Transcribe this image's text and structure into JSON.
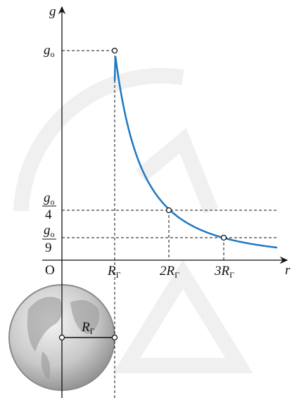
{
  "axes": {
    "y_label": "g",
    "x_label": "r",
    "origin": "O"
  },
  "y_labels": [
    {
      "main": "g",
      "sub": "o"
    },
    {
      "numerator": {
        "main": "g",
        "sub": "o"
      },
      "denominator": "4"
    },
    {
      "numerator": {
        "main": "g",
        "sub": "o"
      },
      "denominator": "9"
    }
  ],
  "x_labels": [
    {
      "main": "R",
      "sub": "Γ"
    },
    {
      "main": "2R",
      "sub": "Γ"
    },
    {
      "main": "3R",
      "sub": "Γ"
    }
  ],
  "earth_label": {
    "main": "R",
    "sub": "Γ"
  }
}
